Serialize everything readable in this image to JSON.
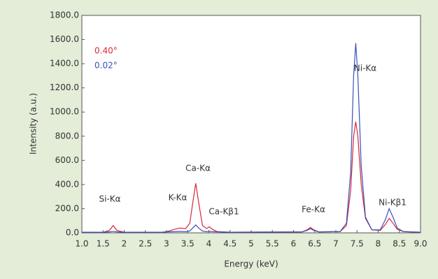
{
  "chart_data": {
    "type": "line",
    "xlabel": "Energy (keV)",
    "ylabel": "Intensity (a.u.)",
    "x": [
      1.0,
      1.5,
      1.65,
      1.74,
      1.83,
      2.0,
      2.9,
      3.0,
      3.2,
      3.31,
      3.45,
      3.55,
      3.62,
      3.69,
      3.76,
      3.85,
      3.95,
      4.01,
      4.08,
      4.2,
      4.5,
      6.2,
      6.32,
      6.4,
      6.48,
      6.6,
      7.1,
      7.25,
      7.35,
      7.42,
      7.47,
      7.52,
      7.6,
      7.7,
      7.85,
      8.05,
      8.17,
      8.26,
      8.35,
      8.45,
      8.6,
      9.0
    ],
    "series": [
      {
        "name": "0.40°",
        "color": "#d7263d",
        "values": [
          5,
          5,
          20,
          60,
          20,
          5,
          5,
          10,
          30,
          40,
          35,
          80,
          250,
          410,
          250,
          60,
          35,
          50,
          30,
          10,
          5,
          8,
          25,
          45,
          25,
          8,
          10,
          60,
          350,
          800,
          920,
          800,
          400,
          120,
          25,
          20,
          70,
          120,
          80,
          30,
          10,
          5
        ]
      },
      {
        "name": "0.02°",
        "color": "#3a4fb8",
        "values": [
          5,
          5,
          8,
          12,
          8,
          5,
          5,
          8,
          10,
          12,
          10,
          15,
          40,
          65,
          40,
          15,
          10,
          12,
          10,
          8,
          5,
          8,
          20,
          35,
          20,
          8,
          10,
          80,
          500,
          1300,
          1570,
          1300,
          550,
          130,
          25,
          25,
          110,
          200,
          130,
          40,
          10,
          5
        ]
      }
    ],
    "annotations": [
      "Si-Kα",
      "K-Kα",
      "Ca-Kα",
      "Ca-Kβ1",
      "Fe-Kα",
      "Ni-Kα",
      "Ni-Kβ1"
    ],
    "xlim": [
      1.0,
      9.0
    ],
    "xticks": [
      {
        "value": 1.0,
        "label": "1.0"
      },
      1.5,
      2,
      2.5,
      3,
      3.5,
      4,
      4.5,
      5,
      5.5,
      6,
      6.5,
      7,
      7.5,
      8,
      8.5,
      {
        "value": 9,
        "label": "9.0"
      }
    ],
    "ylim": [
      0,
      1800
    ],
    "yticks": [
      {
        "value": 0,
        "label": "0.0"
      },
      {
        "value": 200,
        "label": "200.0"
      },
      {
        "value": 400,
        "label": "400.0"
      },
      {
        "value": 600,
        "label": "600.0"
      },
      {
        "value": 800,
        "label": "800.0"
      },
      {
        "value": 1000,
        "label": "1000.0"
      },
      {
        "value": 1200,
        "label": "1200.0"
      },
      {
        "value": 1400,
        "label": "1400.0"
      },
      {
        "value": 1600,
        "label": "1600.0"
      },
      {
        "value": 1800,
        "label": "1800.0"
      }
    ],
    "grid": false
  }
}
